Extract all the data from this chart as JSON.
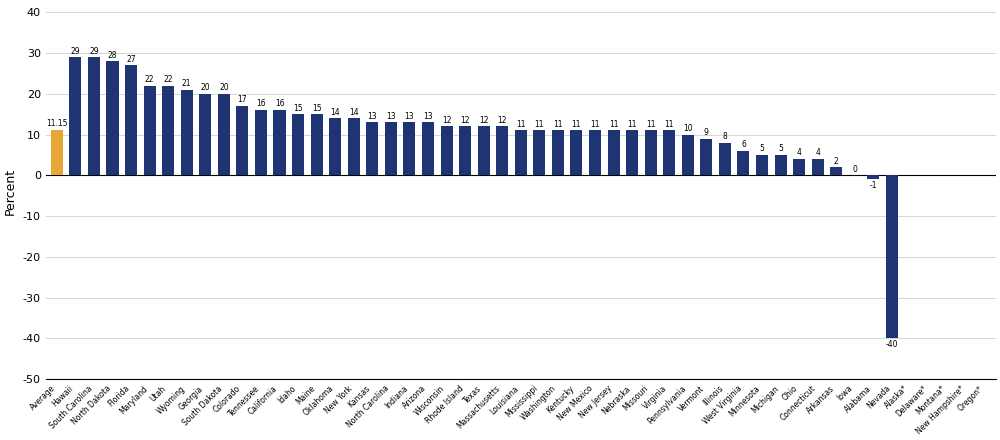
{
  "categories": [
    "Average",
    "Hawaii",
    "South Carolina",
    "North Dakota",
    "Florida",
    "Maryland",
    "Utah",
    "Wyoming",
    "Georgia",
    "South Dakota",
    "Colorado",
    "Tennessee",
    "California",
    "Idaho",
    "Maine",
    "Oklahoma",
    "New York",
    "Kansas",
    "North Carolina",
    "Indiana",
    "Arizona",
    "Wisconsin",
    "Rhode Island",
    "Texas",
    "Massachusetts",
    "Louisiana",
    "Mississippi",
    "Washington",
    "Kentucky",
    "New Mexico",
    "New Jersey",
    "Nebraska",
    "Missouri",
    "Virginia",
    "Pennsylvania",
    "Vermont",
    "Illinois",
    "West Virginia",
    "Minnesota",
    "Michigan",
    "Ohio",
    "Connecticut",
    "Arkansas",
    "Iowa",
    "Alabama",
    "Nevada",
    "Alaska*",
    "Delaware*",
    "Montana*",
    "New Hampshire*",
    "Oregon*"
  ],
  "values": [
    11.15,
    29,
    29,
    28,
    27,
    22,
    22,
    21,
    20,
    20,
    17,
    16,
    16,
    15,
    15,
    14,
    14,
    13,
    13,
    13,
    13,
    12,
    12,
    12,
    12,
    11,
    11,
    11,
    11,
    11,
    11,
    11,
    11,
    11,
    10,
    9,
    8,
    6,
    5,
    5,
    4,
    4,
    2,
    0,
    -1,
    -40,
    null,
    null,
    null,
    null,
    null
  ],
  "gold_color": "#E8A838",
  "navy_color": "#1F3473",
  "no_bar_states": [
    "Alaska*",
    "Delaware*",
    "Montana*",
    "New Hampshire*",
    "Oregon*"
  ],
  "ylabel": "Percent",
  "ylim": [
    -50,
    42
  ],
  "yticks": [
    -50,
    -40,
    -30,
    -20,
    -10,
    0,
    10,
    20,
    30,
    40
  ],
  "background_color": "#ffffff",
  "grid_color": "#d0d0d0",
  "bar_label_fontsize": 5.5,
  "ylabel_fontsize": 9,
  "xtick_fontsize": 5.5,
  "bar_width": 0.65,
  "figsize": [
    10.0,
    4.4
  ],
  "dpi": 100
}
